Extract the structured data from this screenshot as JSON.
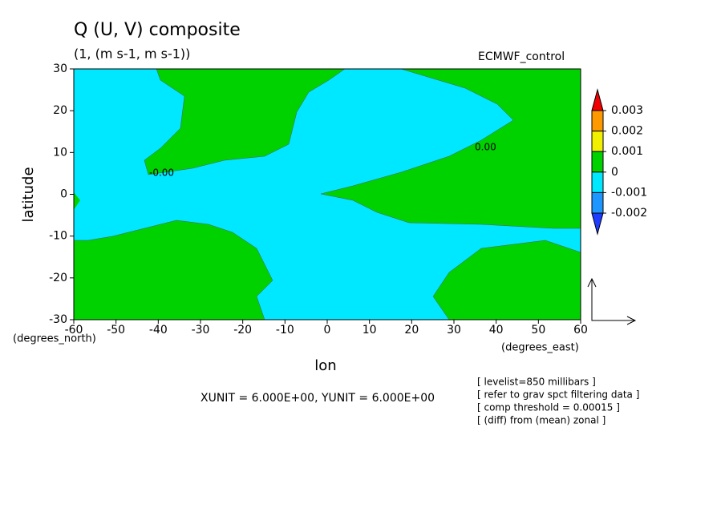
{
  "chart_data": {
    "type": "contour",
    "title": "Q (U, V) composite",
    "subtitle": "(1, (m s-1, m s-1))",
    "source_label": "ECMWF_control",
    "xlabel": "lon",
    "ylabel": "latitude",
    "xunit_label": "(degrees_east)",
    "yunit_label": "(degrees_north)",
    "xlim": [
      -60,
      60
    ],
    "ylim": [
      -30,
      30
    ],
    "xticks": [
      -60,
      -50,
      -40,
      -30,
      -20,
      -10,
      0,
      10,
      20,
      30,
      40,
      50,
      60
    ],
    "yticks": [
      -30,
      -20,
      -10,
      0,
      10,
      20,
      30
    ],
    "colorbar": {
      "levels": [
        0.003,
        0.002,
        0.001,
        0,
        -0.001,
        -0.002
      ],
      "colors": [
        "#f00000",
        "#ff9900",
        "#f0f000",
        "#00d200",
        "#00e8ff",
        "#1e96ff",
        "#1e3cff"
      ]
    },
    "contour_labels": [
      "-0.00",
      "0.00"
    ],
    "vector_scale": "XUNIT = 6.000E+00, YUNIT = 6.000E+00",
    "notes": [
      "[ levelist=850 millibars ]",
      "[ refer to grav spct filtering data ]",
      "[ comp threshold = 0.00015 ]",
      "[ (diff) from (mean) zonal ]"
    ]
  }
}
